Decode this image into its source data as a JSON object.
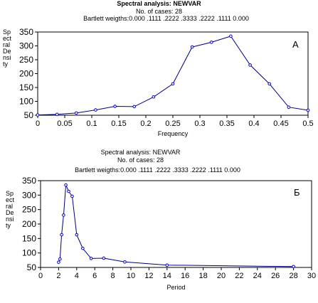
{
  "chart_data": [
    {
      "type": "line",
      "title": "Spectral analysis: NEWVAR",
      "subtitle_lines": [
        "No. of cases: 28",
        "Bartlett weigths:0.000 .1111 .2222 .3333 .2222 .1111 0.000"
      ],
      "ylabel_lines": [
        "Sp",
        "ect",
        "ral",
        "De",
        "nsi",
        "ty"
      ],
      "xlabel": "Frequency",
      "panel_label": "A",
      "xlim": [
        0,
        0.5
      ],
      "ylim": [
        50,
        350
      ],
      "x_ticks": [
        "0",
        "0.05",
        "0.1",
        "0.15",
        "0.2",
        "0.25",
        "0.3",
        "0.35",
        "0.4",
        "0.45",
        "0.5"
      ],
      "y_ticks": [
        "50",
        "100",
        "150",
        "200",
        "250",
        "300",
        "350"
      ],
      "series": [
        {
          "x": [
            0,
            0.0357,
            0.0714,
            0.1071,
            0.1429,
            0.1786,
            0.2143,
            0.25,
            0.2857,
            0.3214,
            0.3571,
            0.3929,
            0.4286,
            0.4643,
            0.5
          ],
          "y": [
            51,
            53,
            58,
            69,
            82,
            81,
            116,
            163,
            296,
            313,
            335,
            231,
            163,
            79,
            68
          ]
        }
      ],
      "colors": {
        "line": "#000080",
        "marker": "#0000cc"
      }
    },
    {
      "type": "line",
      "title": "Spectral analysis: NEWVAR",
      "subtitle_lines": [
        "No. of cases: 28",
        "Bartlett weigths:0.000 .1111 .2222 .3333 .2222 .1111 0.000"
      ],
      "ylabel_lines": [
        "Sp",
        "ect",
        "ral",
        "De",
        "nsi",
        "ty"
      ],
      "xlabel": "Period",
      "panel_label": "Б",
      "xlim": [
        0,
        30
      ],
      "ylim": [
        50,
        350
      ],
      "x_ticks": [
        "0",
        "2",
        "4",
        "6",
        "8",
        "10",
        "12",
        "14",
        "16",
        "18",
        "20",
        "22",
        "24",
        "26",
        "28",
        "30"
      ],
      "y_ticks": [
        "50",
        "100",
        "150",
        "200",
        "250",
        "300",
        "350"
      ],
      "series": [
        {
          "x": [
            2.0,
            2.15,
            2.33,
            2.55,
            2.8,
            3.11,
            3.5,
            4.0,
            4.67,
            5.6,
            7.0,
            9.33,
            14.0,
            28.0
          ],
          "y": [
            68,
            79,
            163,
            231,
            335,
            313,
            296,
            163,
            116,
            81,
            82,
            69,
            58,
            53
          ]
        }
      ],
      "colors": {
        "line": "#000080",
        "marker": "#0000cc"
      }
    }
  ]
}
